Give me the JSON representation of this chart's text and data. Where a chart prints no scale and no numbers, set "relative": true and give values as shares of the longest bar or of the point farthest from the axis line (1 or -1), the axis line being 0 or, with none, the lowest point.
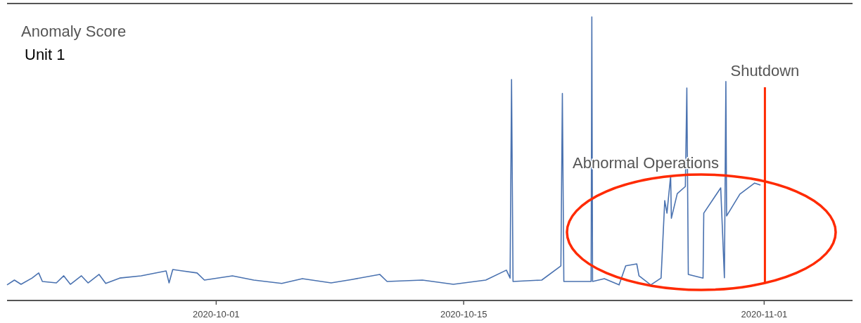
{
  "chart_data": {
    "type": "line",
    "title": "Anomaly Score",
    "subtitle": "Unit 1",
    "relative": true,
    "xlim": [
      "2020-09-19T04:00",
      "2020-11-06T00:00"
    ],
    "xticks": [
      "2020-10-01",
      "2020-10-15",
      "2020-11-01"
    ],
    "x": [
      "2020-09-19T04:00",
      "2020-09-19T14:00",
      "2020-09-19T23:00",
      "2020-09-20T14:00",
      "2020-09-20T23:00",
      "2020-09-21T04:00",
      "2020-09-21T23:00",
      "2020-09-22T09:00",
      "2020-09-22T18:00",
      "2020-09-23T09:00",
      "2020-09-23T18:00",
      "2020-09-24T09:00",
      "2020-09-24T18:00",
      "2020-09-25T13:00",
      "2020-09-26T18:00",
      "2020-09-28T04:00",
      "2020-09-28T08:00",
      "2020-09-28T13:00",
      "2020-09-29T22:00",
      "2020-09-30T08:00",
      "2020-10-01T22:00",
      "2020-10-03T03:00",
      "2020-10-04T17:00",
      "2020-10-05T21:00",
      "2020-10-07T12:00",
      "2020-10-08T16:00",
      "2020-10-10T06:00",
      "2020-10-10T16:00",
      "2020-10-12T16:00",
      "2020-10-14T10:00",
      "2020-10-16T06:00",
      "2020-10-17T10:00",
      "2020-10-17T15:00",
      "2020-10-17T17:00",
      "2020-10-17T19:00",
      "2020-10-19T10:00",
      "2020-10-20T12:00",
      "2020-10-20T14:00",
      "2020-10-20T16:00",
      "2020-10-22T05:00",
      "2020-10-22T06:00",
      "2020-10-22T07:00",
      "2020-10-22T23:00",
      "2020-10-23T19:00",
      "2020-10-24T04:00",
      "2020-10-24T19:00",
      "2020-10-24T22:00",
      "2020-10-25T14:00",
      "2020-10-26T04:00",
      "2020-10-26T09:00",
      "2020-10-26T12:00",
      "2020-10-26T17:00",
      "2020-10-26T18:00",
      "2020-10-27T02:00",
      "2020-10-27T13:00",
      "2020-10-27T15:00",
      "2020-10-27T17:00",
      "2020-10-28T13:00",
      "2020-10-28T14:00",
      "2020-10-29T13:00",
      "2020-10-29T18:00",
      "2020-10-29T20:00",
      "2020-10-29T21:00",
      "2020-10-30T15:00",
      "2020-10-31T11:00",
      "2020-10-31T19:00"
    ],
    "series": [
      {
        "color": "#4a72b0",
        "values": [
          0.055,
          0.072,
          0.057,
          0.079,
          0.097,
          0.067,
          0.062,
          0.087,
          0.057,
          0.087,
          0.062,
          0.092,
          0.06,
          0.079,
          0.087,
          0.104,
          0.062,
          0.109,
          0.097,
          0.072,
          0.087,
          0.072,
          0.06,
          0.077,
          0.062,
          0.074,
          0.092,
          0.067,
          0.072,
          0.057,
          0.072,
          0.107,
          0.079,
          0.779,
          0.067,
          0.072,
          0.122,
          0.73,
          0.067,
          0.067,
          1,
          0.067,
          0.077,
          0.055,
          0.122,
          0.129,
          0.087,
          0.055,
          0.079,
          0.352,
          0.308,
          0.439,
          0.29,
          0.377,
          0.402,
          0.749,
          0.092,
          0.079,
          0.308,
          0.397,
          0.08,
          0.772,
          0.298,
          0.375,
          0.414,
          0.407
        ]
      }
    ],
    "ref_lines": [
      {
        "axis": "x",
        "value": "2020-11-01T01:00",
        "label": "Shutdown",
        "color": "#ff2a00"
      }
    ],
    "annotations": [
      "Abnormal Operations"
    ]
  }
}
